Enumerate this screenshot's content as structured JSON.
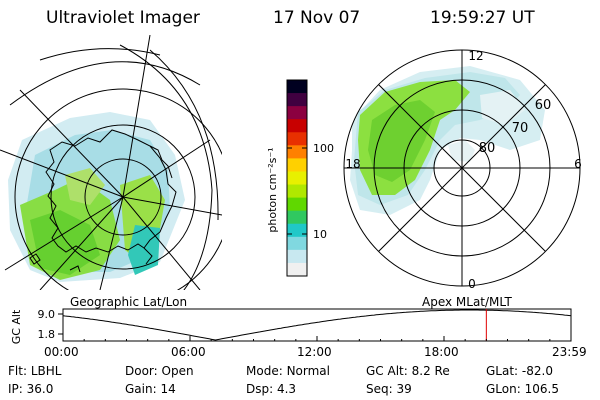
{
  "header": {
    "instrument": "Ultraviolet Imager",
    "date": "17 Nov 07",
    "time": "19:59:27 UT"
  },
  "geo_map": {
    "label": "Geographic Lat/Lon"
  },
  "polar_map": {
    "label": "Apex MLat/MLT",
    "mlt_labels": {
      "top": "12",
      "left": "18",
      "right": "6",
      "bottom": "0"
    },
    "mlat_labels": [
      "60",
      "70",
      "80"
    ]
  },
  "colorbar": {
    "unit_label": "photon cm⁻²s⁻¹",
    "ticks": [
      "100",
      "10"
    ],
    "colors": [
      "#000020",
      "#400040",
      "#8b0040",
      "#c80000",
      "#e83000",
      "#ff8000",
      "#ffd000",
      "#e8f000",
      "#b0e800",
      "#60d800",
      "#30c860",
      "#20c8c8",
      "#80d8e0",
      "#c8e8f0",
      "#f0f0f0"
    ]
  },
  "altitude_plot": {
    "ylabel": "GC Alt",
    "ticks": [
      "9.0",
      "1.8"
    ],
    "times": [
      "00:00",
      "06:00",
      "12:00",
      "18:00",
      "23:59"
    ],
    "current_time_hours": 20.0,
    "marker_color": "#e00000"
  },
  "status": {
    "row1": [
      {
        "label": "Flt:",
        "value": "LBHL"
      },
      {
        "label": "Door:",
        "value": "Open"
      },
      {
        "label": "Mode:",
        "value": "Normal"
      },
      {
        "label": "GC Alt:",
        "value": "8.2 Re"
      },
      {
        "label": "GLat:",
        "value": "-82.0"
      }
    ],
    "row2": [
      {
        "label": "IP:",
        "value": "36.0"
      },
      {
        "label": "Gain:",
        "value": "14"
      },
      {
        "label": "Dsp:",
        "value": "4.3"
      },
      {
        "label": "Seq:",
        "value": "39"
      },
      {
        "label": "GLon:",
        "value": "106.5"
      }
    ]
  }
}
